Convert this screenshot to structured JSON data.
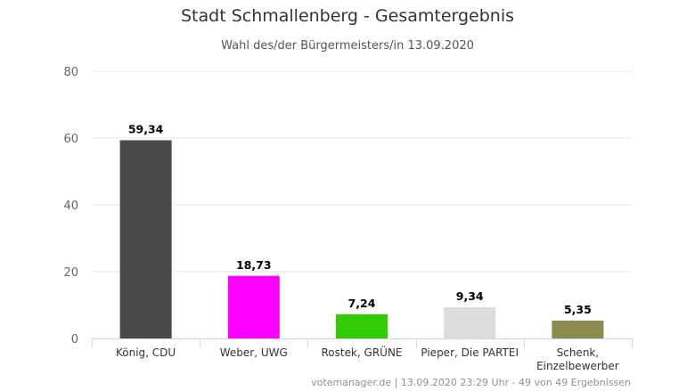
{
  "title": "Stadt Schmallenberg - Gesamtergebnis",
  "subtitle": "Wahl des/der Bürgermeisters/in 13.09.2020",
  "credits": "votemanager.de | 13.09.2020 23:29 Uhr - 49 von 49 Ergebnissen",
  "chart_data": {
    "type": "bar",
    "title": "Stadt Schmallenberg - Gesamtergebnis",
    "subtitle": "Wahl des/der Bürgermeisters/in 13.09.2020",
    "categories": [
      [
        "König, CDU"
      ],
      [
        "Weber, UWG"
      ],
      [
        "Rostek, GRÜNE"
      ],
      [
        "Pieper, Die PARTEI"
      ],
      [
        "Schenk,",
        "Einzelbewerber"
      ]
    ],
    "values": [
      59.34,
      18.73,
      7.24,
      9.34,
      5.35
    ],
    "value_labels": [
      "59,34",
      "18,73",
      "7,24",
      "9,34",
      "5,35"
    ],
    "colors": [
      "#4a4a4a",
      "#ff00ff",
      "#33cc00",
      "#dcdcdc",
      "#8b8b4d"
    ],
    "ylim": [
      0,
      80
    ],
    "yticks": [
      0,
      20,
      40,
      60,
      80
    ],
    "grid": true,
    "legend": "none"
  }
}
